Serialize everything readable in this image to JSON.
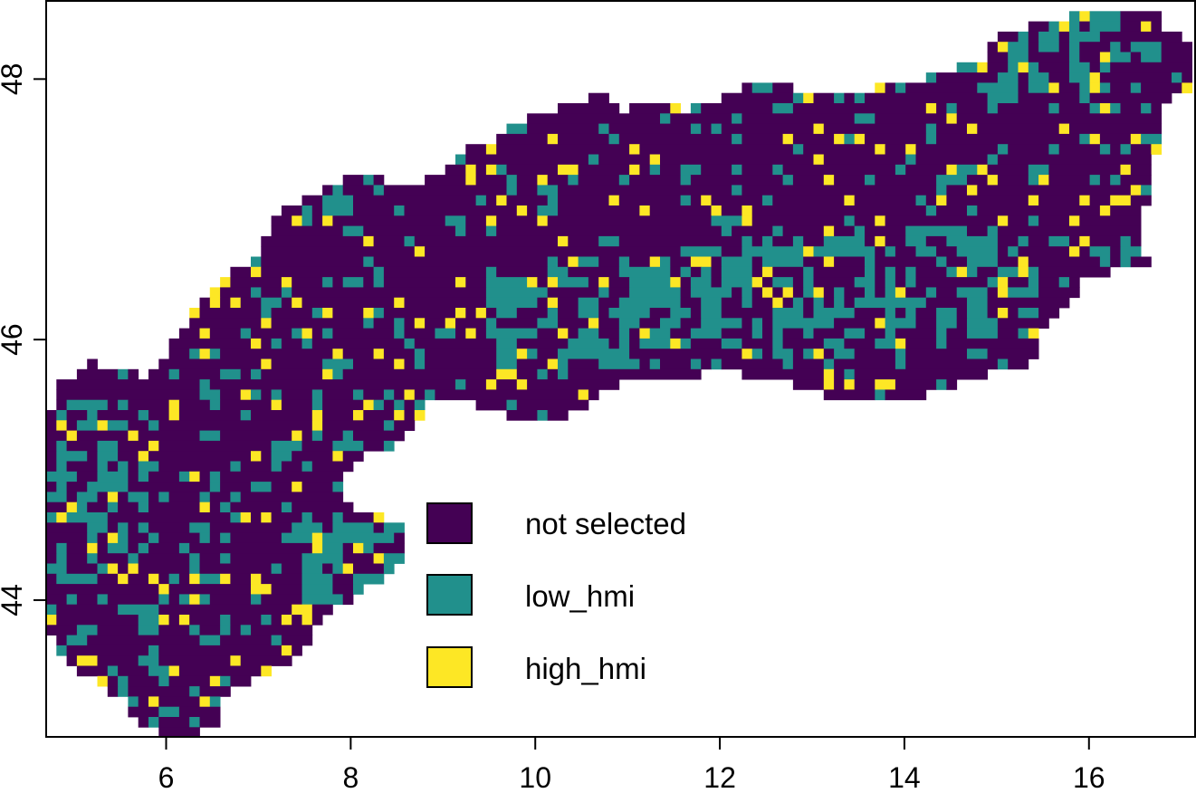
{
  "map": {
    "x_range": [
      4.7,
      17.15
    ],
    "y_range": [
      42.95,
      48.6
    ],
    "x_ticks": [
      {
        "value": 6,
        "label": "6"
      },
      {
        "value": 8,
        "label": "8"
      },
      {
        "value": 10,
        "label": "10"
      },
      {
        "value": 12,
        "label": "12"
      },
      {
        "value": 14,
        "label": "14"
      },
      {
        "value": 16,
        "label": "16"
      }
    ],
    "y_ticks": [
      {
        "value": 44,
        "label": "44"
      },
      {
        "value": 46,
        "label": "46"
      },
      {
        "value": 48,
        "label": "48"
      }
    ],
    "region_outline_lonlat": [
      [
        4.75,
        45.45
      ],
      [
        4.85,
        45.65
      ],
      [
        5.1,
        45.8
      ],
      [
        5.25,
        45.85
      ],
      [
        5.35,
        45.75
      ],
      [
        5.65,
        45.75
      ],
      [
        5.75,
        45.7
      ],
      [
        6.05,
        45.95
      ],
      [
        6.2,
        46.1
      ],
      [
        6.35,
        46.3
      ],
      [
        6.55,
        46.45
      ],
      [
        7.0,
        46.65
      ],
      [
        7.2,
        46.95
      ],
      [
        7.8,
        47.2
      ],
      [
        8.1,
        47.25
      ],
      [
        8.7,
        47.2
      ],
      [
        9.0,
        47.3
      ],
      [
        9.2,
        47.45
      ],
      [
        9.6,
        47.55
      ],
      [
        10.0,
        47.75
      ],
      [
        10.45,
        47.8
      ],
      [
        10.7,
        47.95
      ],
      [
        10.9,
        47.75
      ],
      [
        11.3,
        47.85
      ],
      [
        11.6,
        47.75
      ],
      [
        12.0,
        47.85
      ],
      [
        12.3,
        47.95
      ],
      [
        12.7,
        47.95
      ],
      [
        13.0,
        47.85
      ],
      [
        13.4,
        47.9
      ],
      [
        13.9,
        47.95
      ],
      [
        14.4,
        48.05
      ],
      [
        14.9,
        48.15
      ],
      [
        15.0,
        48.35
      ],
      [
        15.6,
        48.45
      ],
      [
        16.1,
        48.55
      ],
      [
        16.7,
        48.55
      ],
      [
        16.85,
        48.35
      ],
      [
        17.15,
        48.3
      ],
      [
        17.15,
        47.95
      ],
      [
        16.85,
        47.85
      ],
      [
        16.8,
        47.5
      ],
      [
        16.65,
        47.35
      ],
      [
        16.65,
        47.1
      ],
      [
        16.55,
        46.9
      ],
      [
        16.65,
        46.55
      ],
      [
        16.35,
        46.55
      ],
      [
        15.95,
        46.45
      ],
      [
        15.85,
        46.3
      ],
      [
        15.7,
        46.2
      ],
      [
        15.5,
        46.1
      ],
      [
        15.5,
        45.95
      ],
      [
        15.3,
        45.8
      ],
      [
        14.7,
        45.7
      ],
      [
        14.1,
        45.55
      ],
      [
        13.6,
        45.5
      ],
      [
        13.25,
        45.55
      ],
      [
        12.95,
        45.6
      ],
      [
        12.6,
        45.7
      ],
      [
        12.0,
        45.75
      ],
      [
        11.5,
        45.7
      ],
      [
        10.8,
        45.65
      ],
      [
        10.5,
        45.45
      ],
      [
        10.0,
        45.35
      ],
      [
        9.6,
        45.45
      ],
      [
        9.2,
        45.55
      ],
      [
        8.9,
        45.55
      ],
      [
        8.5,
        45.2
      ],
      [
        8.0,
        45.05
      ],
      [
        7.9,
        44.8
      ],
      [
        8.1,
        44.7
      ],
      [
        8.65,
        44.55
      ],
      [
        8.5,
        44.25
      ],
      [
        8.1,
        44.05
      ],
      [
        7.8,
        43.9
      ],
      [
        7.6,
        43.75
      ],
      [
        7.4,
        43.55
      ],
      [
        7.1,
        43.45
      ],
      [
        6.9,
        43.4
      ],
      [
        6.6,
        43.2
      ],
      [
        6.5,
        43.0
      ],
      [
        6.0,
        42.95
      ],
      [
        5.7,
        43.05
      ],
      [
        5.6,
        43.2
      ],
      [
        5.3,
        43.35
      ],
      [
        4.95,
        43.5
      ],
      [
        4.75,
        43.7
      ]
    ],
    "grid_seed": 20250,
    "colors": {
      "not_selected": "#440154",
      "low_hmi": "#21908C",
      "high_hmi": "#FDE725"
    }
  },
  "legend": {
    "position": "bottom-center",
    "items": [
      {
        "key": "not_selected",
        "label": "not selected",
        "color": "#440154"
      },
      {
        "key": "low_hmi",
        "label": "low_hmi",
        "color": "#21908C"
      },
      {
        "key": "high_hmi",
        "label": "high_hmi",
        "color": "#FDE725"
      }
    ]
  }
}
